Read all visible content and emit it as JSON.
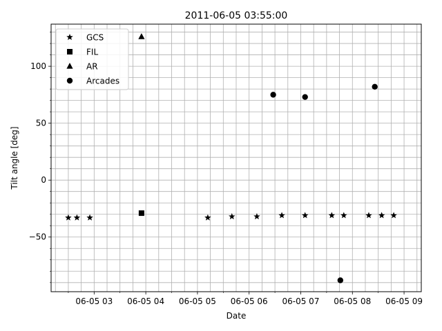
{
  "chart_data": {
    "type": "scatter",
    "title": "2011-06-05 03:55:00",
    "xlabel": "Date",
    "ylabel": "Tilt angle [deg]",
    "grid": true,
    "legend_position": "top-left",
    "colors": {
      "markers": "#000000",
      "grid": "#b0b0b0"
    },
    "xlim": [
      "2011-06-05 02:10",
      "2011-06-05 09:20"
    ],
    "ylim": [
      -98,
      137
    ],
    "x_ticks": [
      {
        "value": "2011-06-05 03:00",
        "label": "06-05 03"
      },
      {
        "value": "2011-06-05 04:00",
        "label": "06-05 04"
      },
      {
        "value": "2011-06-05 05:00",
        "label": "06-05 05"
      },
      {
        "value": "2011-06-05 06:00",
        "label": "06-05 06"
      },
      {
        "value": "2011-06-05 07:00",
        "label": "06-05 07"
      },
      {
        "value": "2011-06-05 08:00",
        "label": "06-05 08"
      },
      {
        "value": "2011-06-05 09:00",
        "label": "06-05 09"
      }
    ],
    "y_ticks": [
      {
        "value": -50,
        "label": "−50"
      },
      {
        "value": 0,
        "label": "0"
      },
      {
        "value": 50,
        "label": "50"
      },
      {
        "value": 100,
        "label": "100"
      }
    ],
    "series": [
      {
        "name": "GCS",
        "marker": "star",
        "points": [
          {
            "x": "2011-06-05 02:30",
            "y": -33
          },
          {
            "x": "2011-06-05 02:40",
            "y": -33
          },
          {
            "x": "2011-06-05 02:55",
            "y": -33
          },
          {
            "x": "2011-06-05 05:12",
            "y": -33
          },
          {
            "x": "2011-06-05 05:40",
            "y": -32
          },
          {
            "x": "2011-06-05 06:09",
            "y": -32
          },
          {
            "x": "2011-06-05 06:38",
            "y": -31
          },
          {
            "x": "2011-06-05 07:05",
            "y": -31
          },
          {
            "x": "2011-06-05 07:36",
            "y": -31
          },
          {
            "x": "2011-06-05 07:50",
            "y": -31
          },
          {
            "x": "2011-06-05 08:19",
            "y": -31
          },
          {
            "x": "2011-06-05 08:34",
            "y": -31
          },
          {
            "x": "2011-06-05 08:48",
            "y": -31
          }
        ]
      },
      {
        "name": "FIL",
        "marker": "square",
        "points": [
          {
            "x": "2011-06-05 03:55",
            "y": -29
          }
        ]
      },
      {
        "name": "AR",
        "marker": "triangle",
        "points": [
          {
            "x": "2011-06-05 03:55",
            "y": 126
          }
        ]
      },
      {
        "name": "Arcades",
        "marker": "circle",
        "points": [
          {
            "x": "2011-06-05 06:28",
            "y": 75
          },
          {
            "x": "2011-06-05 07:05",
            "y": 73
          },
          {
            "x": "2011-06-05 07:46",
            "y": -88
          },
          {
            "x": "2011-06-05 08:26",
            "y": 82
          }
        ]
      }
    ]
  }
}
